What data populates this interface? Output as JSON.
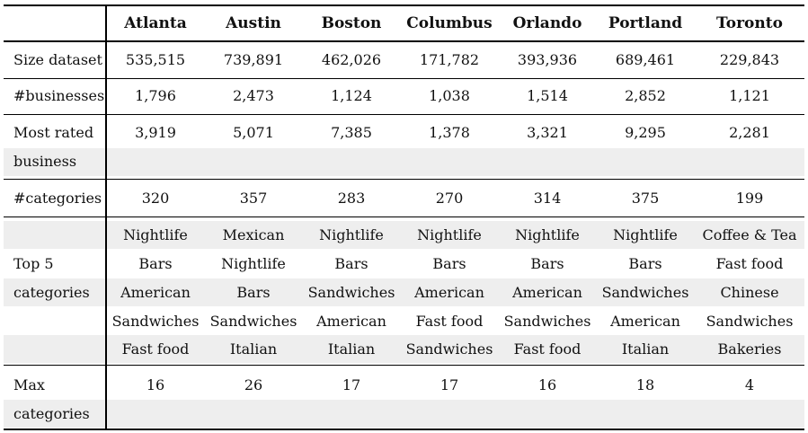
{
  "header": [
    "Atlanta",
    "Austin",
    "Boston",
    "Columbus",
    "Orlando",
    "Portland",
    "Toronto"
  ],
  "rows": {
    "size_dataset": {
      "label": "Size dataset",
      "values": [
        "535,515",
        "739,891",
        "462,026",
        "171,782",
        "393,936",
        "689,461",
        "229,843"
      ]
    },
    "businesses": {
      "label": "#businesses",
      "values": [
        "1,796",
        "2,473",
        "1,124",
        "1,038",
        "1,514",
        "2,852",
        "1,121"
      ]
    },
    "most_rated": {
      "label": [
        "Most rated",
        "business"
      ],
      "values": [
        "3,919",
        "5,071",
        "7,385",
        "1,378",
        "3,321",
        "9,295",
        "2,281"
      ]
    },
    "categories": {
      "label": "#categories",
      "values": [
        "320",
        "357",
        "283",
        "270",
        "314",
        "375",
        "199"
      ]
    },
    "top5": {
      "label": [
        "",
        "Top 5",
        "categories",
        "",
        ""
      ],
      "values": [
        [
          "Nightlife",
          "Mexican",
          "Nightlife",
          "Nightlife",
          "Nightlife",
          "Nightlife",
          "Coffee & Tea"
        ],
        [
          "Bars",
          "Nightlife",
          "Bars",
          "Bars",
          "Bars",
          "Bars",
          "Fast food"
        ],
        [
          "American",
          "Bars",
          "Sandwiches",
          "American",
          "American",
          "Sandwiches",
          "Chinese"
        ],
        [
          "Sandwiches",
          "Sandwiches",
          "American",
          "Fast food",
          "Sandwiches",
          "American",
          "Sandwiches"
        ],
        [
          "Fast food",
          "Italian",
          "Italian",
          "Sandwiches",
          "Fast food",
          "Italian",
          "Bakeries"
        ]
      ]
    },
    "max_categories": {
      "label": [
        "Max",
        "categories"
      ],
      "values": [
        "16",
        "26",
        "17",
        "17",
        "16",
        "18",
        "4"
      ]
    }
  }
}
